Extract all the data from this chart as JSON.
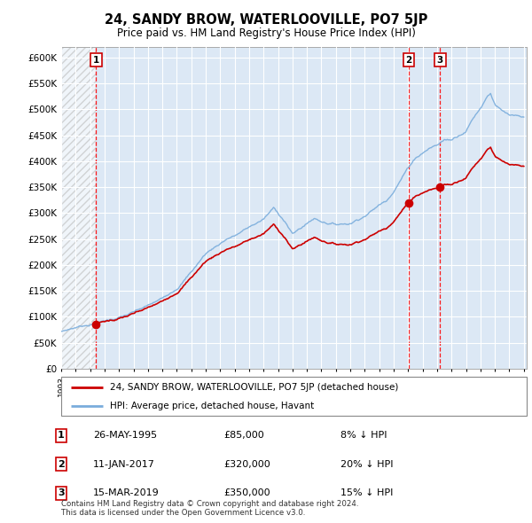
{
  "title": "24, SANDY BROW, WATERLOOVILLE, PO7 5JP",
  "subtitle": "Price paid vs. HM Land Registry's House Price Index (HPI)",
  "ylabel_ticks": [
    "£0",
    "£50K",
    "£100K",
    "£150K",
    "£200K",
    "£250K",
    "£300K",
    "£350K",
    "£400K",
    "£450K",
    "£500K",
    "£550K",
    "£600K"
  ],
  "ylim": [
    0,
    620000
  ],
  "ytick_vals": [
    0,
    50000,
    100000,
    150000,
    200000,
    250000,
    300000,
    350000,
    400000,
    450000,
    500000,
    550000,
    600000
  ],
  "hpi_color": "#7aaddc",
  "price_color": "#cc0000",
  "background_plot": "#dce8f5",
  "sale_prices": [
    85000,
    320000,
    350000
  ],
  "sale_labels": [
    "1",
    "2",
    "3"
  ],
  "sale_year_floats": [
    1995.41,
    2017.03,
    2019.21
  ],
  "footer_text": "Contains HM Land Registry data © Crown copyright and database right 2024.\nThis data is licensed under the Open Government Licence v3.0.",
  "legend_label_red": "24, SANDY BROW, WATERLOOVILLE, PO7 5JP (detached house)",
  "legend_label_blue": "HPI: Average price, detached house, Havant",
  "table_data": [
    [
      "1",
      "26-MAY-1995",
      "£85,000",
      "8% ↓ HPI"
    ],
    [
      "2",
      "11-JAN-2017",
      "£320,000",
      "20% ↓ HPI"
    ],
    [
      "3",
      "15-MAR-2019",
      "£350,000",
      "15% ↓ HPI"
    ]
  ]
}
